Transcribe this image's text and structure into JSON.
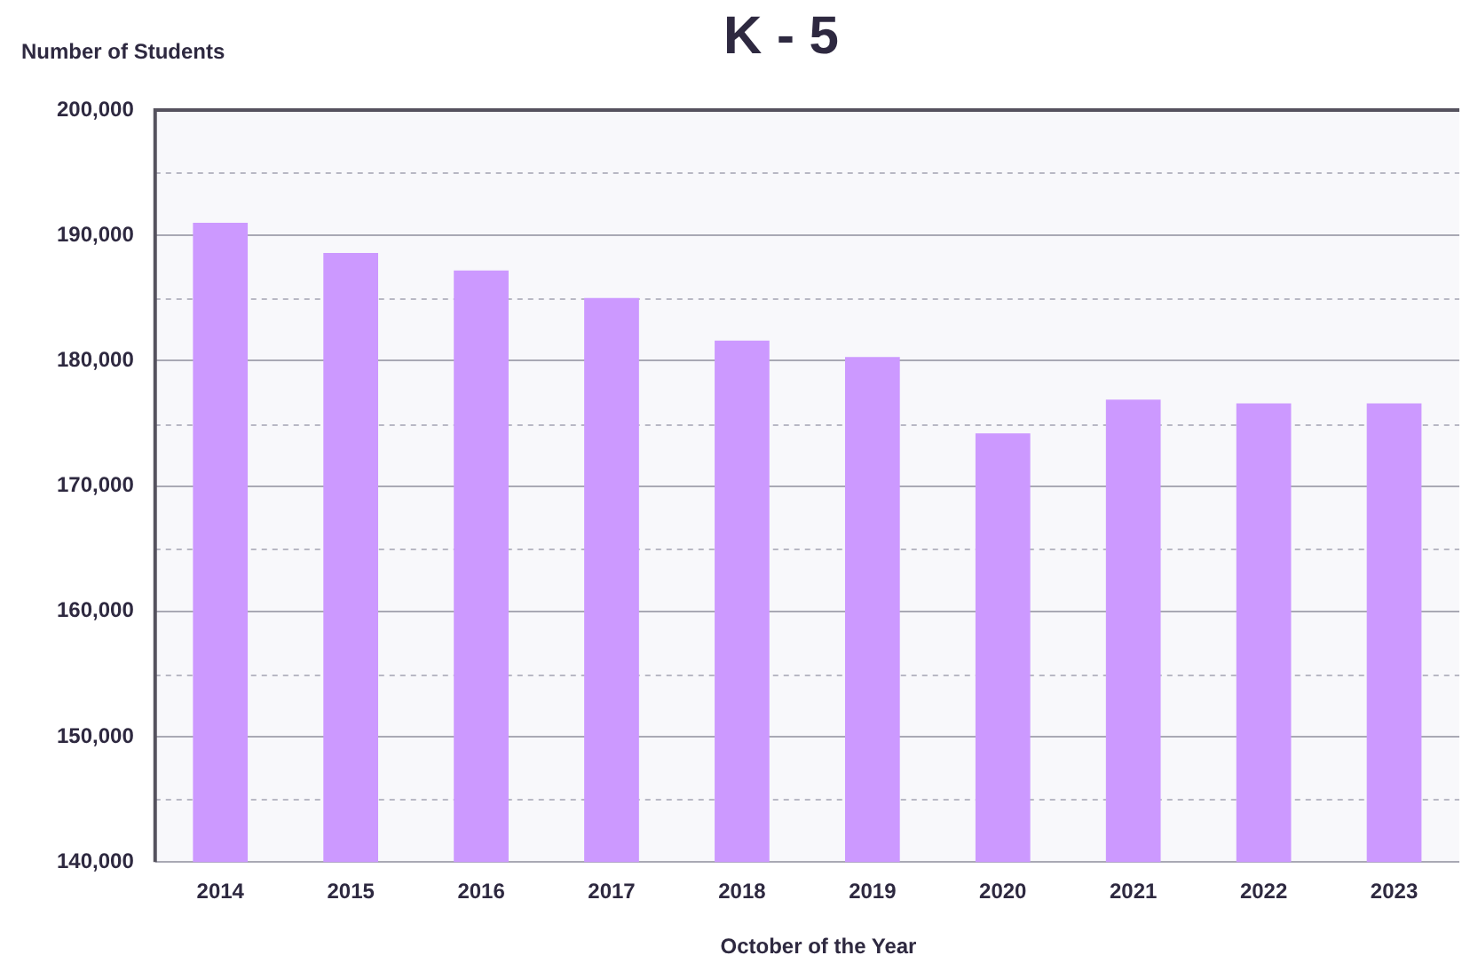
{
  "chart_data": {
    "type": "bar",
    "title": "K - 5",
    "xlabel": "October of the Year",
    "ylabel": "Number of Students",
    "categories": [
      "2014",
      "2015",
      "2016",
      "2017",
      "2018",
      "2019",
      "2020",
      "2021",
      "2022",
      "2023"
    ],
    "values": [
      191000,
      188600,
      187200,
      185000,
      181600,
      180300,
      174200,
      176900,
      176600,
      176600
    ],
    "color": "#cc99ff",
    "ylim": [
      140000,
      200000
    ],
    "yticks": [
      {
        "value": 140000,
        "label": "140,000"
      },
      {
        "value": 145000,
        "label": null
      },
      {
        "value": 150000,
        "label": "150,000"
      },
      {
        "value": 155000,
        "label": null
      },
      {
        "value": 160000,
        "label": "160,000"
      },
      {
        "value": 165000,
        "label": null
      },
      {
        "value": 170000,
        "label": "170,000"
      },
      {
        "value": 175000,
        "label": null
      },
      {
        "value": 180000,
        "label": "180,000"
      },
      {
        "value": 185000,
        "label": null
      },
      {
        "value": 190000,
        "label": "190,000"
      },
      {
        "value": 195000,
        "label": null
      },
      {
        "value": 200000,
        "label": "200,000"
      }
    ],
    "grid": "y"
  }
}
